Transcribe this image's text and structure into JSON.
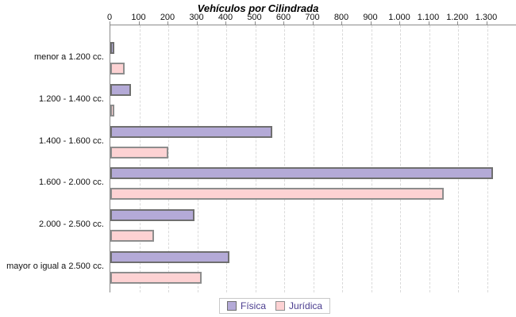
{
  "title": "Vehículos por Cilindrada",
  "chart_data": {
    "type": "bar",
    "orientation": "horizontal",
    "title": "Vehículos por Cilindrada",
    "xlabel": "",
    "ylabel": "",
    "xlim": [
      0,
      1400
    ],
    "grid": "vertical-dashed",
    "legend_position": "bottom-center",
    "categories": [
      "menor a 1.200 cc.",
      "1.200 - 1.400 cc.",
      "1.400 - 1.600 cc.",
      "1.600 - 2.000 cc.",
      "2.000 - 2.500 cc.",
      "mayor o igual a 2.500 cc."
    ],
    "series": [
      {
        "name": "Física",
        "color": "#b4aad7",
        "border_color": "#6f6f6f",
        "values": [
          15,
          70,
          560,
          1320,
          290,
          410
        ]
      },
      {
        "name": "Jurídica",
        "color": "#fdd2d3",
        "border_color": "#8d8d8d",
        "values": [
          50,
          15,
          200,
          1150,
          150,
          315
        ]
      }
    ],
    "xticks": [
      0,
      100,
      200,
      300,
      400,
      500,
      600,
      700,
      800,
      900,
      1000,
      1100,
      1200,
      1300
    ],
    "xtick_labels": [
      "0",
      "100",
      "200",
      "300",
      "400",
      "500",
      "600",
      "700",
      "800",
      "900",
      "1.000",
      "1.100",
      "1.200",
      "1.300"
    ]
  },
  "colors": {
    "axis_line": "#8a8a8a",
    "gridline": "#dadada",
    "tick_text": "#111111",
    "legend_text": "#4a3c8f",
    "legend_border": "#c9c9c9",
    "background": "#ffffff"
  }
}
